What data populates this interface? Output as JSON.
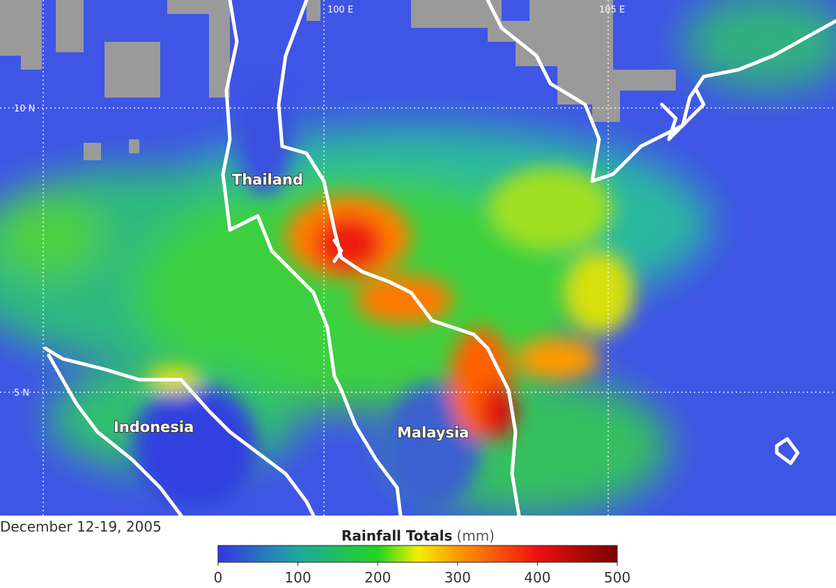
{
  "map": {
    "grid_labels": {
      "lon": [
        "100 E",
        "105 E"
      ],
      "lat": [
        "10 N",
        "5 N"
      ]
    },
    "places": [
      "Thailand",
      "Indonesia",
      "Malaysia"
    ],
    "date": "December 12-19, 2005",
    "legend": {
      "title": "Rainfall Totals",
      "unit": "(mm)",
      "range": [
        0,
        500
      ],
      "ticks": [
        0,
        100,
        200,
        300,
        400,
        500
      ]
    }
  }
}
